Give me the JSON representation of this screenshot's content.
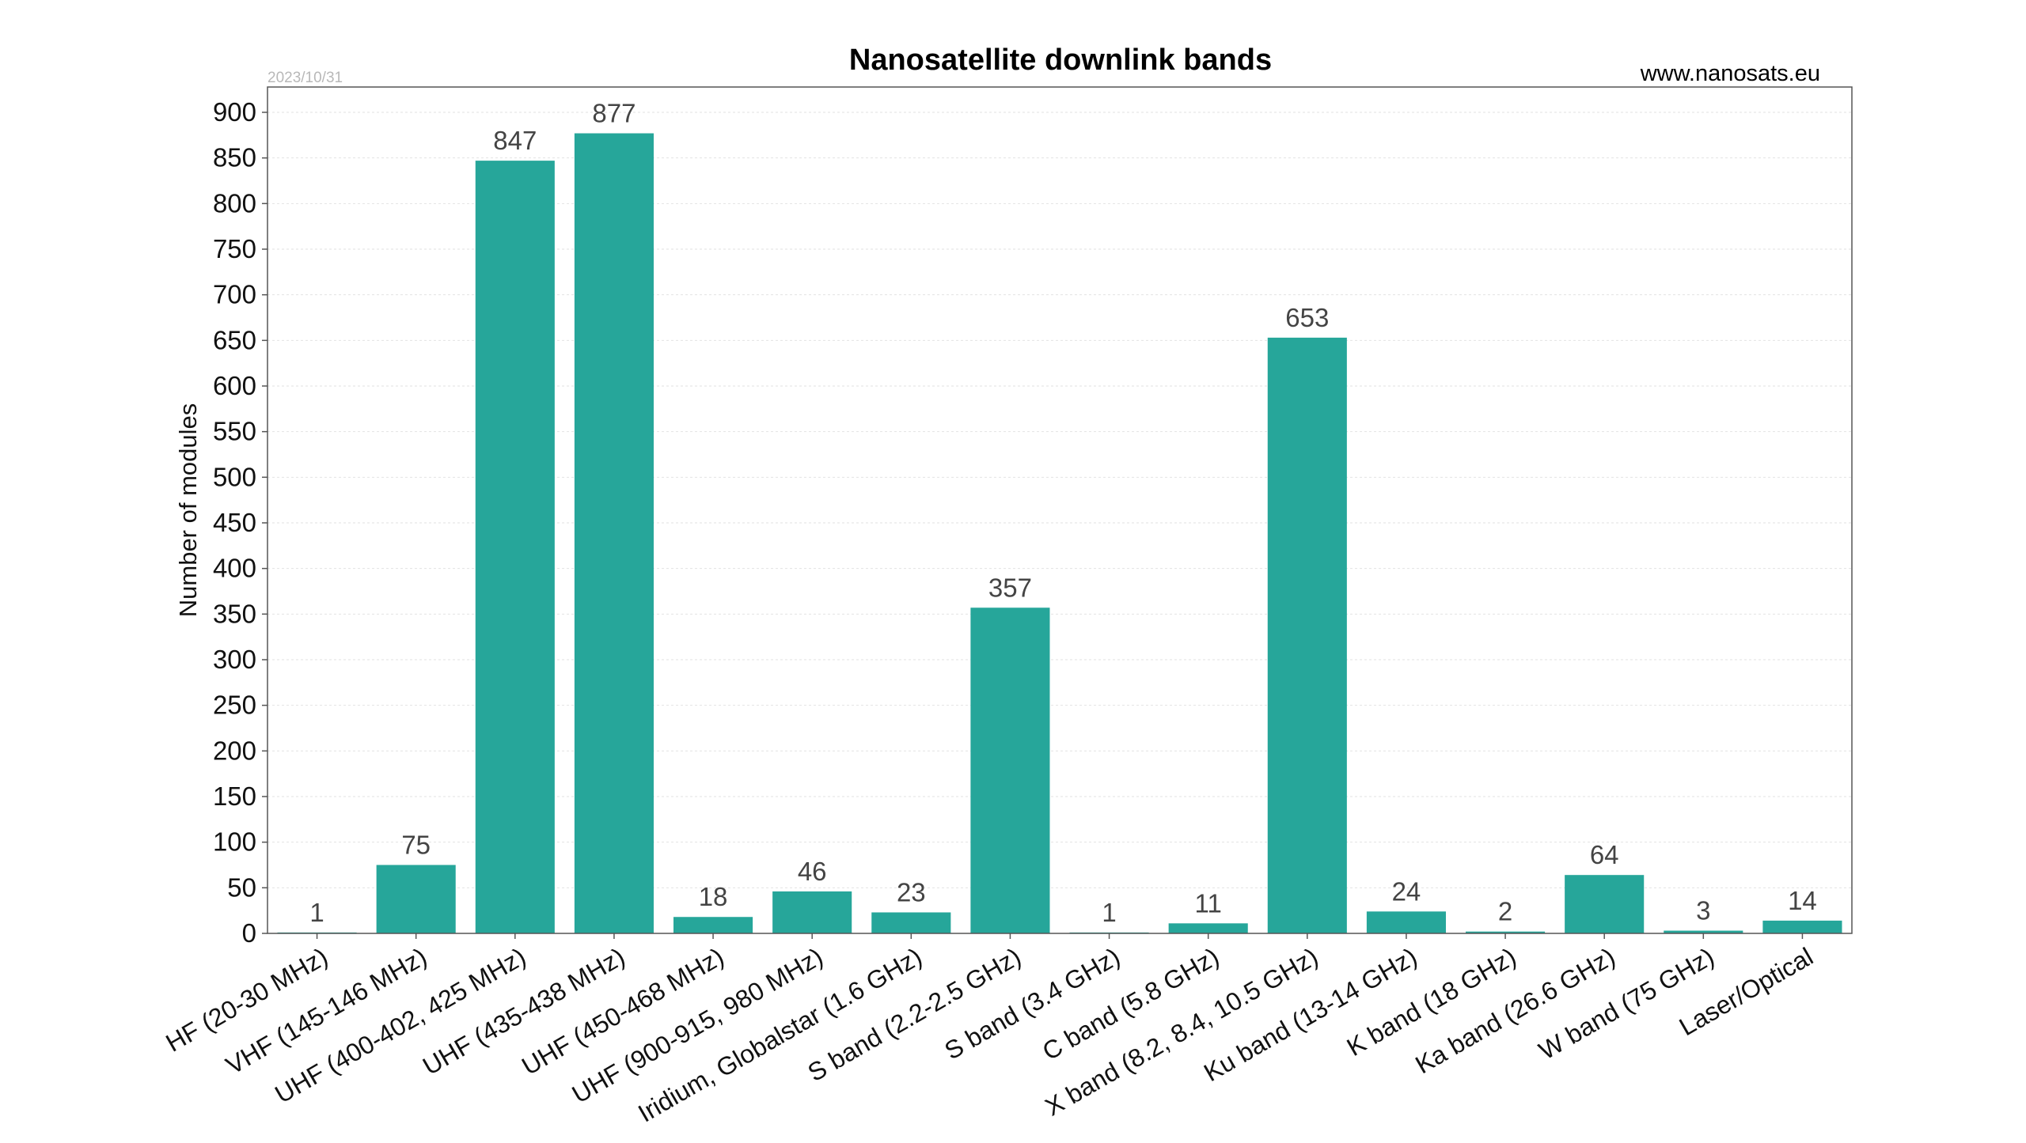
{
  "header": {
    "title": "Nanosatellite downlink bands",
    "date": "2023/10/31",
    "source": "www.nanosats.eu"
  },
  "colors": {
    "bar": "#26a69a",
    "grid": "#e2e2e2",
    "frame": "#555555"
  },
  "chart_data": {
    "type": "bar",
    "title": "Nanosatellite downlink bands",
    "xlabel": "",
    "ylabel": "Number of modules",
    "ylim": [
      0,
      900
    ],
    "yticks": [
      0,
      50,
      100,
      150,
      200,
      250,
      300,
      350,
      400,
      450,
      500,
      550,
      600,
      650,
      700,
      750,
      800,
      850,
      900
    ],
    "grid": true,
    "data_labels": true,
    "categories": [
      "HF (20-30 MHz)",
      "VHF (145-146 MHz)",
      "UHF (400-402, 425 MHz)",
      "UHF (435-438 MHz)",
      "UHF (450-468 MHz)",
      "UHF (900-915, 980 MHz)",
      "Iridium, Globalstar (1.6 GHz)",
      "S band (2.2-2.5 GHz)",
      "S band (3.4 GHz)",
      "C band (5.8 GHz)",
      "X band (8.2, 8.4, 10.5 GHz)",
      "Ku band (13-14 GHz)",
      "K band (18 GHz)",
      "Ka band (26.6 GHz)",
      "W band (75 GHz)",
      "Laser/Optical"
    ],
    "values": [
      1,
      75,
      847,
      877,
      18,
      46,
      23,
      357,
      1,
      11,
      653,
      24,
      2,
      64,
      3,
      14
    ]
  }
}
